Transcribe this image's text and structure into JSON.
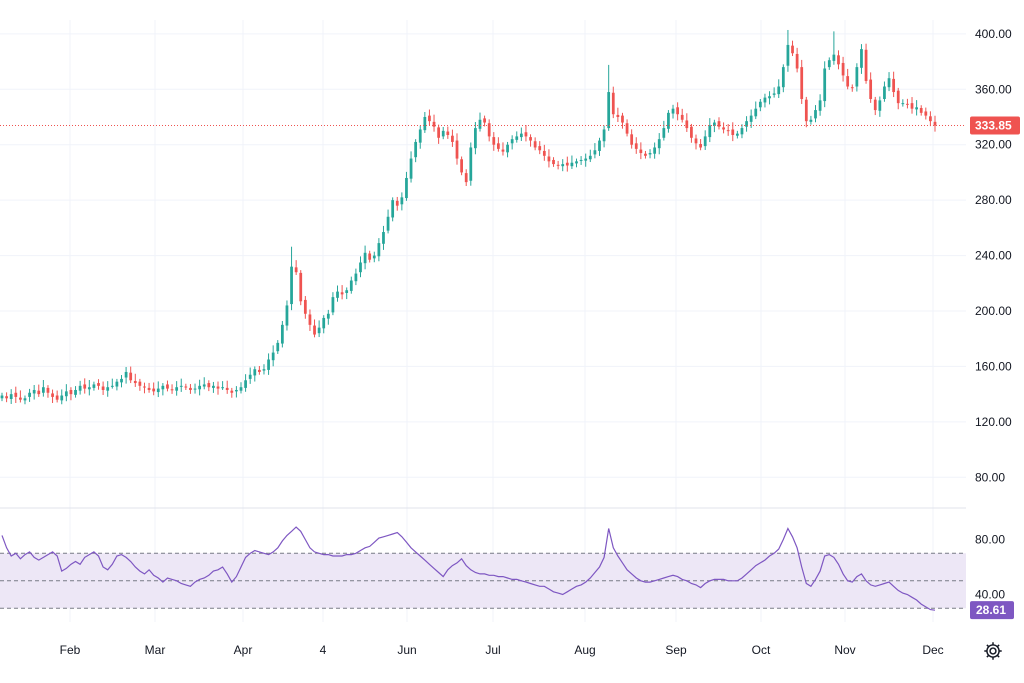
{
  "colors": {
    "up": "#26a69a",
    "down": "#ef5350",
    "rsi_line": "#7e57c2",
    "rsi_band": "#ede7f6",
    "grid": "#f0f3fa",
    "last_price_badge": "#ef5350",
    "rsi_badge": "#7e57c2"
  },
  "price_axis": {
    "ticks": [
      "400.00",
      "360.00",
      "320.00",
      "280.00",
      "240.00",
      "200.00",
      "160.00",
      "120.00",
      "80.00"
    ]
  },
  "rsi_axis": {
    "ticks": [
      "80.00",
      "40.00"
    ]
  },
  "time_axis": {
    "ticks": [
      "Feb",
      "Mar",
      "Apr",
      "4",
      "Jun",
      "Jul",
      "Aug",
      "Sep",
      "Oct",
      "Nov",
      "Dec"
    ]
  },
  "last_price_label": "333.85",
  "rsi_value_label": "28.61",
  "settings_icon": "gear-icon",
  "chart_data": [
    {
      "type": "candlestick",
      "title": "",
      "ylim": [
        60,
        410
      ],
      "x_ticks": [
        "Feb",
        "Mar",
        "Apr",
        "4",
        "Jun",
        "Jul",
        "Aug",
        "Sep",
        "Oct",
        "Nov",
        "Dec"
      ],
      "last_price": 333.85,
      "series": [
        {
          "close": [
            139,
            137,
            140,
            138,
            136,
            137,
            141,
            143,
            140,
            145,
            141,
            138,
            136,
            139,
            142,
            140,
            143,
            146,
            144,
            145,
            147,
            146,
            143,
            145,
            146,
            149,
            151,
            156,
            150,
            148,
            146,
            145,
            143,
            142,
            144,
            146,
            144,
            143,
            145,
            146,
            145,
            143,
            144,
            146,
            147,
            145,
            146,
            144,
            145,
            143,
            141,
            143,
            145,
            150,
            154,
            158,
            156,
            158,
            165,
            170,
            177,
            190,
            204,
            232,
            228,
            207,
            198,
            190,
            183,
            188,
            195,
            198,
            210,
            214,
            212,
            215,
            222,
            227,
            235,
            242,
            237,
            240,
            249,
            257,
            268,
            280,
            276,
            282,
            296,
            310,
            322,
            331,
            340,
            337,
            333,
            325,
            330,
            327,
            322,
            310,
            300,
            293,
            318,
            332,
            338,
            336,
            326,
            320,
            317,
            315,
            320,
            324,
            326,
            328,
            326,
            323,
            318,
            316,
            312,
            308,
            306,
            305,
            306,
            305,
            307,
            308,
            309,
            310,
            312,
            316,
            323,
            331,
            358,
            342,
            340,
            336,
            328,
            320,
            317,
            314,
            312,
            314,
            318,
            324,
            332,
            343,
            346,
            342,
            338,
            332,
            325,
            321,
            318,
            326,
            334,
            336,
            333,
            331,
            330,
            327,
            328,
            332,
            337,
            341,
            346,
            351,
            354,
            355,
            357,
            362,
            376,
            392,
            386,
            375,
            353,
            337,
            338,
            345,
            352,
            375,
            381,
            385,
            378,
            370,
            362,
            361,
            376,
            389,
            366,
            353,
            345,
            352,
            362,
            368,
            358,
            350,
            350,
            349,
            346,
            347,
            343,
            341,
            337,
            333.85
          ]
        }
      ]
    },
    {
      "type": "line",
      "title": "",
      "ylim": [
        20,
        100
      ],
      "y_ticks": [
        80,
        40
      ],
      "bands": {
        "upper": 70,
        "middle": 50,
        "lower": 30
      },
      "last_value": 28.61,
      "series": [
        {
          "values": [
            83,
            74,
            68,
            70,
            66,
            69,
            71,
            67,
            65,
            67,
            69,
            71,
            68,
            57,
            59,
            62,
            64,
            62,
            67,
            69,
            71,
            68,
            60,
            58,
            62,
            68,
            69,
            67,
            64,
            60,
            57,
            55,
            58,
            54,
            52,
            49,
            52,
            51,
            50,
            48,
            47,
            46,
            49,
            51,
            52,
            54,
            57,
            58,
            60,
            55,
            49,
            53,
            60,
            67,
            70,
            72,
            71,
            70,
            69,
            71,
            74,
            79,
            83,
            86,
            89,
            86,
            80,
            74,
            71,
            70,
            69,
            69,
            68,
            68,
            68,
            69,
            69,
            70,
            72,
            74,
            75,
            78,
            81,
            82,
            83,
            84,
            85,
            82,
            78,
            74,
            71,
            68,
            65,
            62,
            59,
            56,
            53,
            58,
            61,
            63,
            66,
            61,
            58,
            56,
            55,
            55,
            54,
            54,
            53,
            53,
            52,
            51,
            51,
            50,
            49,
            48,
            47,
            46,
            46,
            44,
            42,
            41,
            40,
            42,
            44,
            46,
            47,
            49,
            52,
            56,
            60,
            67,
            88,
            74,
            68,
            63,
            58,
            55,
            52,
            50,
            49,
            49,
            50,
            51,
            52,
            53,
            54,
            53,
            51,
            50,
            48,
            47,
            45,
            48,
            50,
            51,
            51,
            51,
            50,
            50,
            50,
            52,
            55,
            58,
            61,
            63,
            65,
            68,
            70,
            73,
            80,
            88,
            82,
            74,
            60,
            48,
            46,
            51,
            57,
            68,
            69,
            67,
            62,
            55,
            50,
            49,
            53,
            55,
            50,
            47,
            46,
            47,
            48,
            49,
            46,
            43,
            41,
            40,
            38,
            36,
            33,
            31,
            29,
            28.61
          ]
        }
      ]
    }
  ]
}
